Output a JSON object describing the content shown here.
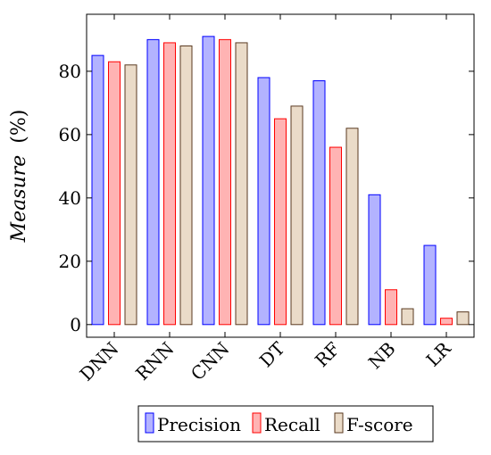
{
  "chart_data": {
    "type": "bar",
    "categories": [
      "DNN",
      "RNN",
      "CNN",
      "DT",
      "RF",
      "NB",
      "LR"
    ],
    "series": [
      {
        "name": "Precision",
        "values": [
          85,
          90,
          91,
          78,
          77,
          41,
          25
        ]
      },
      {
        "name": "Recall",
        "values": [
          83,
          89,
          90,
          65,
          56,
          11,
          2
        ]
      },
      {
        "name": "F-score",
        "values": [
          82,
          88,
          89,
          69,
          62,
          5,
          4
        ]
      }
    ],
    "ylabel_italic": "Measure",
    "ylabel_unit": "(%)",
    "xlabel": "",
    "ylim": [
      -4,
      98
    ],
    "yticks": [
      0,
      20,
      40,
      60,
      80
    ],
    "legend_position": "bottom-center",
    "grid": false,
    "colors": {
      "Precision": {
        "fill": "#b3b3ff",
        "stroke": "#0000ff"
      },
      "Recall": {
        "fill": "#ffb3b3",
        "stroke": "#ff0000"
      },
      "F-score": {
        "fill": "#eadbc8",
        "stroke": "#5a3a20"
      }
    }
  }
}
